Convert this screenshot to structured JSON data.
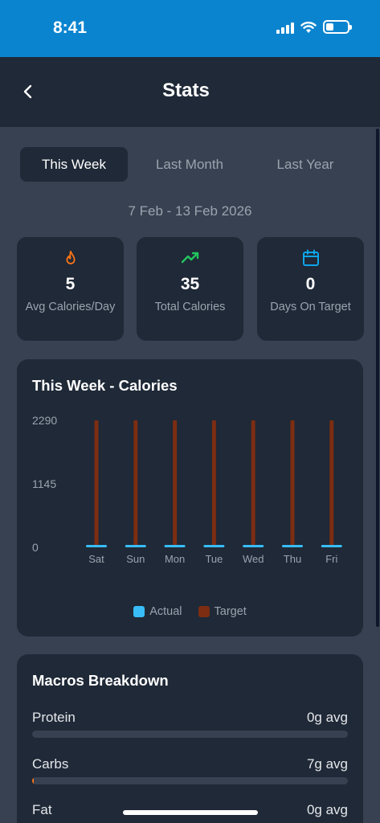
{
  "status_bar": {
    "time": "8:41"
  },
  "header": {
    "title": "Stats",
    "back_icon": "chevron-left-icon"
  },
  "tabs": [
    {
      "label": "This Week",
      "active": true
    },
    {
      "label": "Last Month",
      "active": false
    },
    {
      "label": "Last Year",
      "active": false
    }
  ],
  "date_range": "7 Feb - 13 Feb 2026",
  "stats": [
    {
      "icon": "flame-icon",
      "color": "#f97316",
      "value": "5",
      "label": "Avg Calories/Day"
    },
    {
      "icon": "trending-up-icon",
      "color": "#22c55e",
      "value": "35",
      "label": "Total Calories"
    },
    {
      "icon": "calendar-icon",
      "color": "#0ea5e9",
      "value": "0",
      "label": "Days On Target"
    }
  ],
  "chart_card": {
    "title": "This Week - Calories"
  },
  "chart_data": {
    "type": "bar",
    "title": "This Week - Calories",
    "categories": [
      "Sat",
      "Sun",
      "Mon",
      "Tue",
      "Wed",
      "Thu",
      "Fri"
    ],
    "y_ticks": [
      "2290",
      "1145",
      "0"
    ],
    "ylim": [
      0,
      2290
    ],
    "series": [
      {
        "name": "Actual",
        "color": "#38bdf8",
        "values": [
          35,
          0,
          0,
          0,
          0,
          0,
          0
        ]
      },
      {
        "name": "Target",
        "color": "#7c2d12",
        "values": [
          2290,
          2290,
          2290,
          2290,
          2290,
          2290,
          2290
        ]
      }
    ],
    "legend_position": "bottom",
    "grid": false
  },
  "macros": {
    "title": "Macros Breakdown",
    "items": [
      {
        "name": "Protein",
        "amount": "0g avg",
        "fraction": 0.0
      },
      {
        "name": "Carbs",
        "amount": "7g avg",
        "fraction": 0.003
      },
      {
        "name": "Fat",
        "amount": "0g avg",
        "fraction": 0.0
      }
    ]
  }
}
